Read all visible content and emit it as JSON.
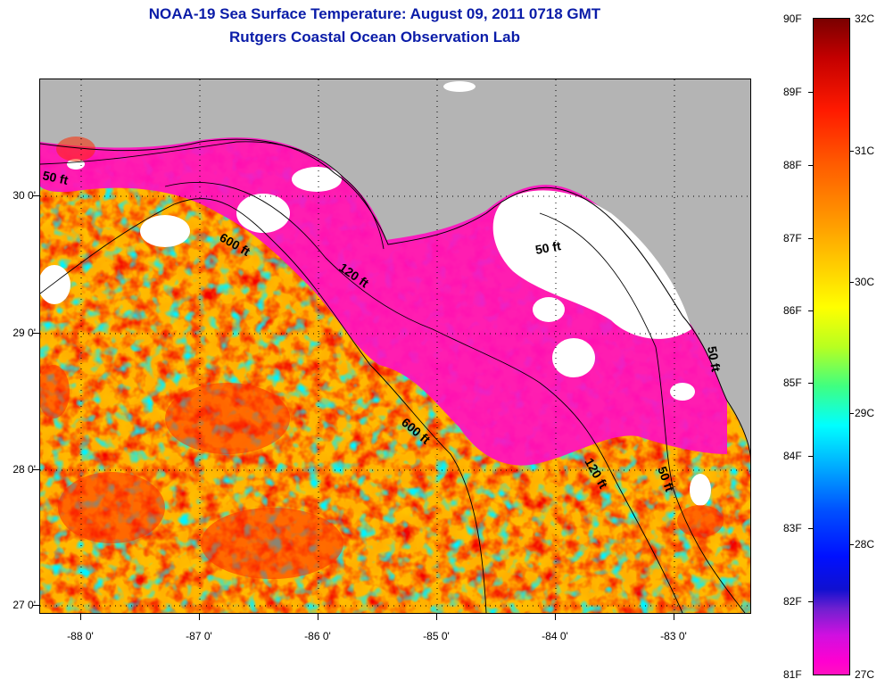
{
  "title": "NOAA-19 Sea Surface Temperature:  August 09, 2011 0718 GMT",
  "subtitle": "Rutgers Coastal Ocean Observation Lab",
  "lat_labels": [
    "30 0'",
    "29 0'",
    "28 0'",
    "27 0'"
  ],
  "lon_labels": [
    "-88 0'",
    "-87 0'",
    "-86 0'",
    "-85 0'",
    "-84 0'",
    "-83 0'"
  ],
  "contour_labels": [
    "50 ft",
    "600 ft",
    "120 ft",
    "50 ft",
    "600 ft",
    "120 ft",
    "50 ft",
    "50 ft"
  ],
  "colorbar": {
    "fahrenheit": [
      "90F",
      "89F",
      "88F",
      "87F",
      "86F",
      "85F",
      "84F",
      "83F",
      "82F",
      "81F"
    ],
    "celsius": [
      "32C",
      "31C",
      "30C",
      "29C",
      "28C",
      "27C"
    ]
  },
  "colors": {
    "land": "#b4b4b4",
    "cloud": "#ffffff",
    "cold": "#ff10c0",
    "warm": "#ff8000",
    "title": "#0a1ca8"
  }
}
